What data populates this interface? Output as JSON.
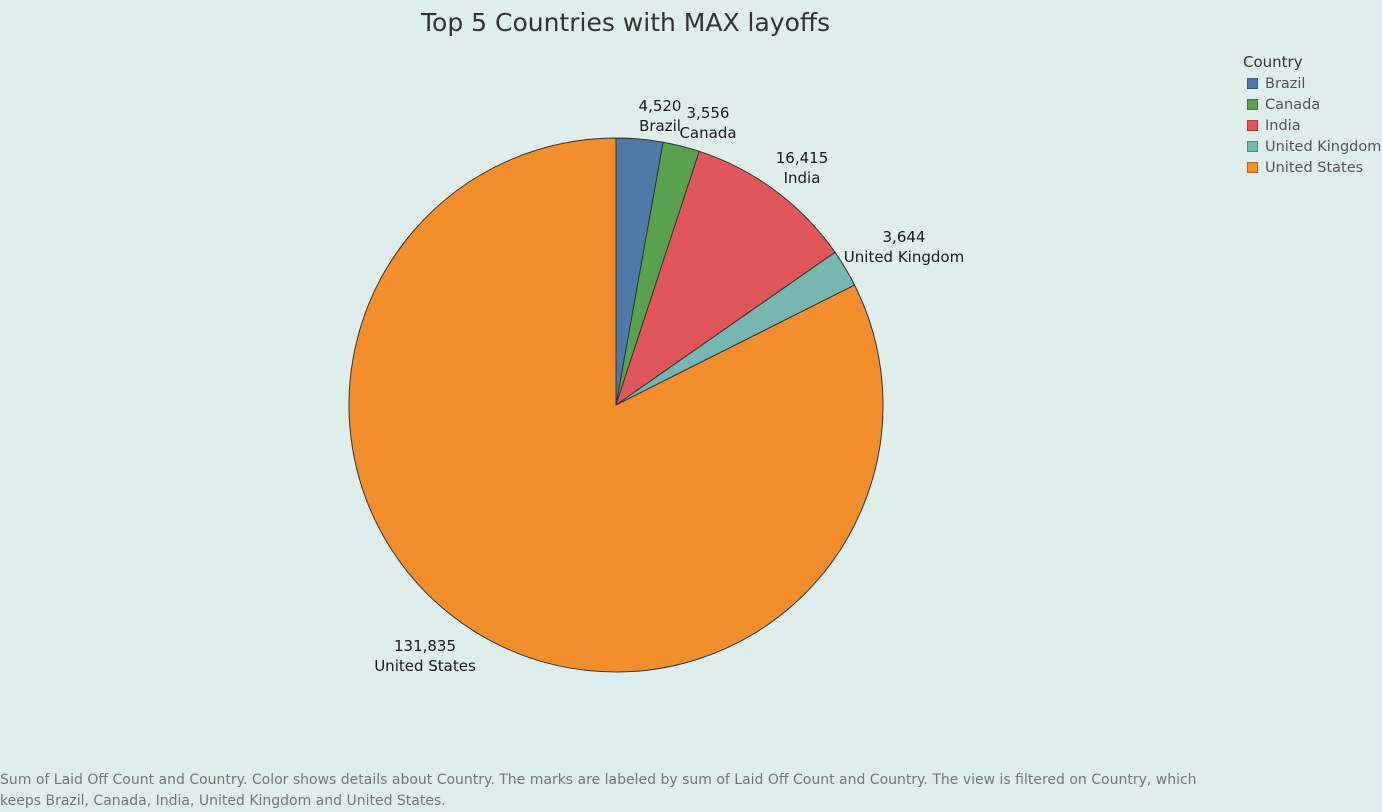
{
  "chart_data": {
    "type": "pie",
    "title": "Top 5 Countries with MAX layoffs",
    "categories": [
      "Brazil",
      "Canada",
      "India",
      "United Kingdom",
      "United States"
    ],
    "values": [
      4520,
      3556,
      16415,
      3644,
      131835
    ],
    "value_labels": [
      "4,520",
      "3,556",
      "16,415",
      "3,644",
      "131,835"
    ],
    "colors": [
      "#4e79a7",
      "#59a14f",
      "#e15759",
      "#76b7b2",
      "#f28e2b"
    ],
    "start_angle": "12 o'clock",
    "direction": "clockwise",
    "legend": {
      "title": "Country",
      "position": "top-right",
      "items": [
        "Brazil",
        "Canada",
        "India",
        "United Kingdom",
        "United States"
      ]
    }
  },
  "caption": "Sum of Laid Off Count and Country.  Color shows details about Country.  The marks are labeled by sum of Laid Off Count and Country. The view is filtered on Country, which keeps Brazil, Canada, India, United Kingdom and United States."
}
